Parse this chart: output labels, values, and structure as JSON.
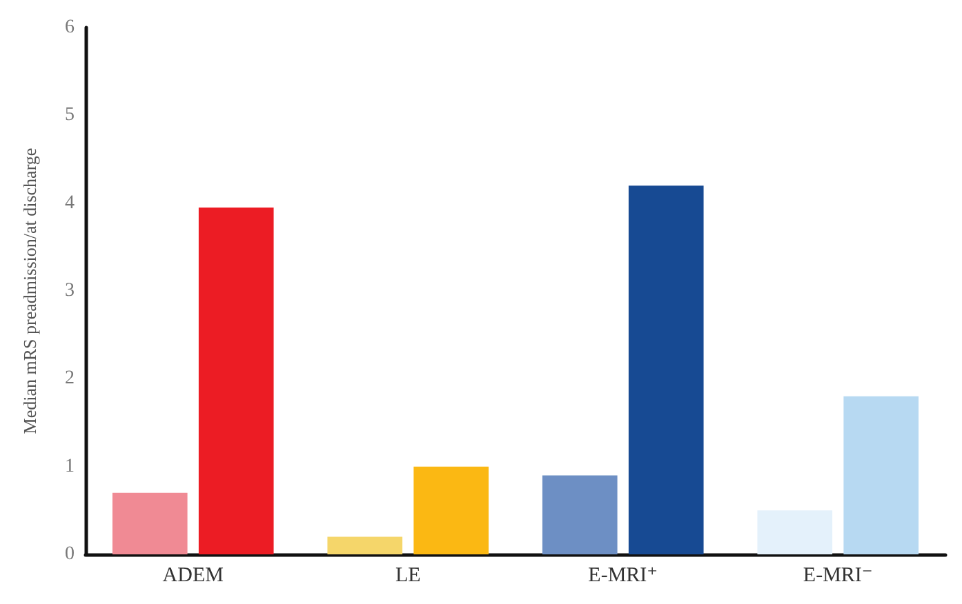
{
  "chart_data": {
    "type": "bar",
    "ylabel": "Median mRS preadmission/at discharge",
    "categories": [
      "ADEM",
      "LE",
      "E-MRI⁺",
      "E-MRI⁻"
    ],
    "series": [
      {
        "colors": [
          "#f08a94",
          "#f5d66a",
          "#6d8fc4",
          "#e4f1fb"
        ],
        "values": [
          0.7,
          0.2,
          0.9,
          0.5
        ]
      },
      {
        "colors": [
          "#ec1c24",
          "#fbb813",
          "#174a93",
          "#b7d9f2"
        ],
        "values": [
          3.95,
          1.0,
          4.2,
          1.8
        ]
      }
    ],
    "ylim": [
      0,
      6
    ],
    "yticks": [
      0,
      1,
      2,
      3,
      4,
      5,
      6
    ],
    "grid": false
  }
}
